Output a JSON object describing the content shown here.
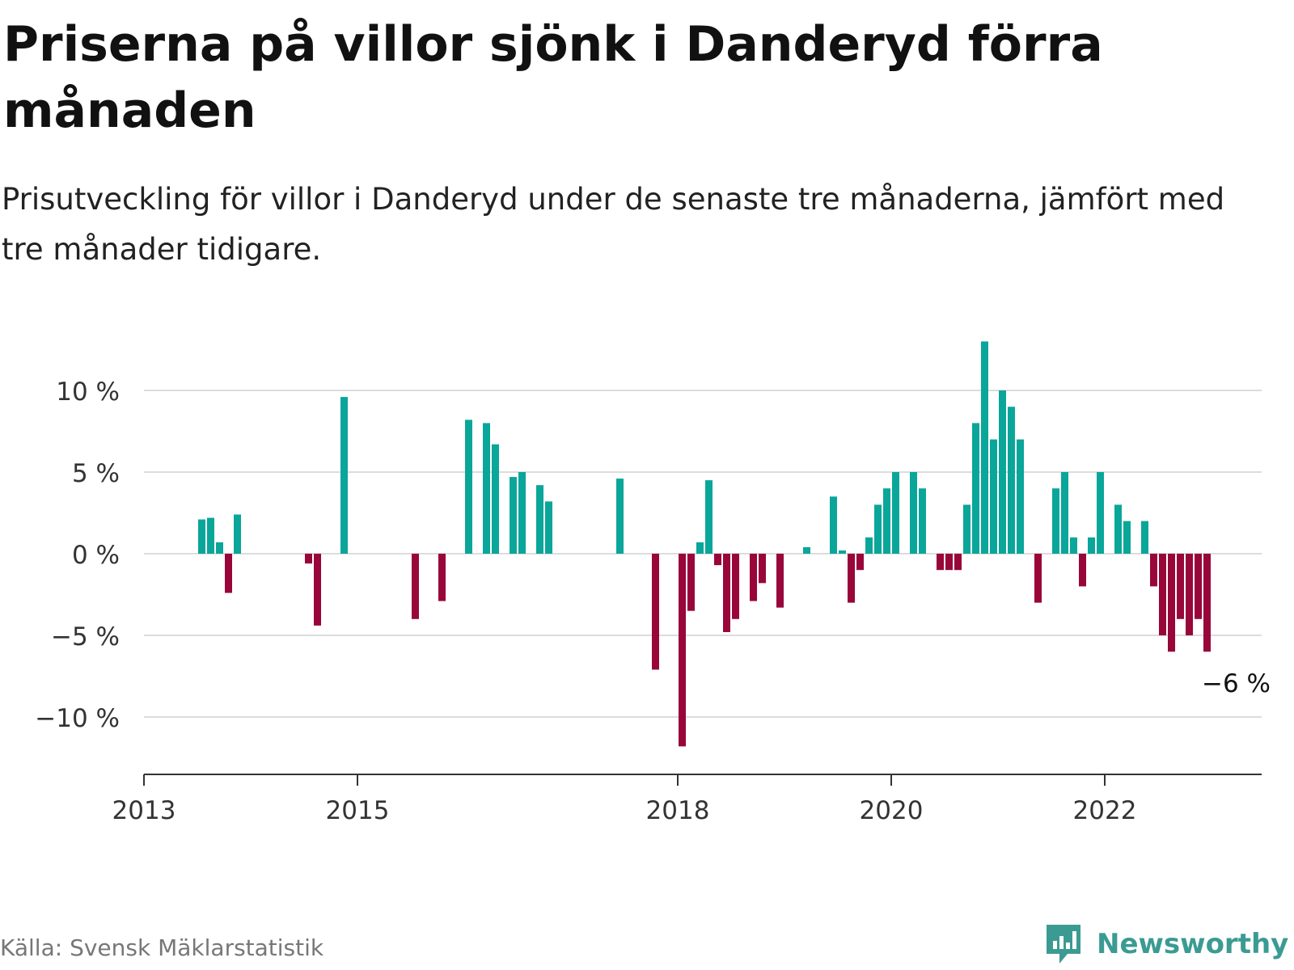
{
  "header": {
    "title": "Priserna på villor sjönk i Danderyd förra månaden",
    "subtitle": "Prisutveckling för villor i Danderyd under de senaste tre månaderna, jämfört med tre månader tidigare."
  },
  "footer": {
    "source": "Källa: Svensk Mäklarstatistik",
    "brand": "Newsworthy",
    "brand_icon": "newsworthy-logo-icon"
  },
  "colors": {
    "positive": "#0aa69a",
    "negative": "#98063a",
    "grid": "#dcdcdc",
    "axis": "#333333",
    "brand": "#3b9b93"
  },
  "chart_data": {
    "type": "bar",
    "title": "Priserna på villor sjönk i Danderyd förra månaden",
    "subtitle": "Prisutveckling för villor i Danderyd under de senaste tre månaderna, jämfört med tre månader tidigare.",
    "xlabel": "",
    "ylabel": "",
    "unit": "%",
    "ylim": [
      -13.5,
      13.2
    ],
    "yticks": [
      -10,
      -5,
      0,
      5,
      10
    ],
    "ytick_labels": [
      "−10 %",
      "−5 %",
      "0 %",
      "5 %",
      "10 %"
    ],
    "xticks": [
      "2013",
      "2015",
      "2018",
      "2020",
      "2022"
    ],
    "grid": true,
    "annotation": {
      "text": "−6 %",
      "month": "2022-12"
    },
    "series": [
      {
        "values": [
          {
            "month": "2013-07",
            "value": 2.1
          },
          {
            "month": "2013-08",
            "value": 2.2
          },
          {
            "month": "2013-09",
            "value": 0.7
          },
          {
            "month": "2013-10",
            "value": -2.4
          },
          {
            "month": "2013-11",
            "value": 2.4
          },
          {
            "month": "2014-07",
            "value": -0.6
          },
          {
            "month": "2014-08",
            "value": -4.4
          },
          {
            "month": "2014-11",
            "value": 9.6
          },
          {
            "month": "2015-07",
            "value": -4.0
          },
          {
            "month": "2015-10",
            "value": -2.9
          },
          {
            "month": "2016-01",
            "value": 8.2
          },
          {
            "month": "2016-03",
            "value": 8.0
          },
          {
            "month": "2016-04",
            "value": 6.7
          },
          {
            "month": "2016-06",
            "value": 4.7
          },
          {
            "month": "2016-07",
            "value": 5.0
          },
          {
            "month": "2016-09",
            "value": 4.2
          },
          {
            "month": "2016-10",
            "value": 3.2
          },
          {
            "month": "2017-06",
            "value": 4.6
          },
          {
            "month": "2017-10",
            "value": -7.1
          },
          {
            "month": "2018-01",
            "value": -11.8
          },
          {
            "month": "2018-02",
            "value": -3.5
          },
          {
            "month": "2018-03",
            "value": 0.7
          },
          {
            "month": "2018-04",
            "value": 4.5
          },
          {
            "month": "2018-05",
            "value": -0.7
          },
          {
            "month": "2018-06",
            "value": -4.8
          },
          {
            "month": "2018-07",
            "value": -4.0
          },
          {
            "month": "2018-09",
            "value": -2.9
          },
          {
            "month": "2018-10",
            "value": -1.8
          },
          {
            "month": "2018-12",
            "value": -3.3
          },
          {
            "month": "2019-03",
            "value": 0.4
          },
          {
            "month": "2019-06",
            "value": 3.5
          },
          {
            "month": "2019-07",
            "value": 0.2
          },
          {
            "month": "2019-08",
            "value": -3.0
          },
          {
            "month": "2019-09",
            "value": -1.0
          },
          {
            "month": "2019-10",
            "value": 1.0
          },
          {
            "month": "2019-11",
            "value": 3.0
          },
          {
            "month": "2019-12",
            "value": 4.0
          },
          {
            "month": "2020-01",
            "value": 5.0
          },
          {
            "month": "2020-03",
            "value": 5.0
          },
          {
            "month": "2020-04",
            "value": 4.0
          },
          {
            "month": "2020-06",
            "value": -1.0
          },
          {
            "month": "2020-07",
            "value": -1.0
          },
          {
            "month": "2020-08",
            "value": -1.0
          },
          {
            "month": "2020-09",
            "value": 3.0
          },
          {
            "month": "2020-10",
            "value": 8.0
          },
          {
            "month": "2020-11",
            "value": 13.0
          },
          {
            "month": "2020-12",
            "value": 7.0
          },
          {
            "month": "2021-01",
            "value": 10.0
          },
          {
            "month": "2021-02",
            "value": 9.0
          },
          {
            "month": "2021-03",
            "value": 7.0
          },
          {
            "month": "2021-05",
            "value": -3.0
          },
          {
            "month": "2021-07",
            "value": 4.0
          },
          {
            "month": "2021-08",
            "value": 5.0
          },
          {
            "month": "2021-09",
            "value": 1.0
          },
          {
            "month": "2021-10",
            "value": -2.0
          },
          {
            "month": "2021-11",
            "value": 1.0
          },
          {
            "month": "2021-12",
            "value": 5.0
          },
          {
            "month": "2022-02",
            "value": 3.0
          },
          {
            "month": "2022-03",
            "value": 2.0
          },
          {
            "month": "2022-05",
            "value": 2.0
          },
          {
            "month": "2022-06",
            "value": -2.0
          },
          {
            "month": "2022-07",
            "value": -5.0
          },
          {
            "month": "2022-08",
            "value": -6.0
          },
          {
            "month": "2022-09",
            "value": -4.0
          },
          {
            "month": "2022-10",
            "value": -5.0
          },
          {
            "month": "2022-11",
            "value": -4.0
          },
          {
            "month": "2022-12",
            "value": -6.0
          }
        ]
      }
    ]
  }
}
